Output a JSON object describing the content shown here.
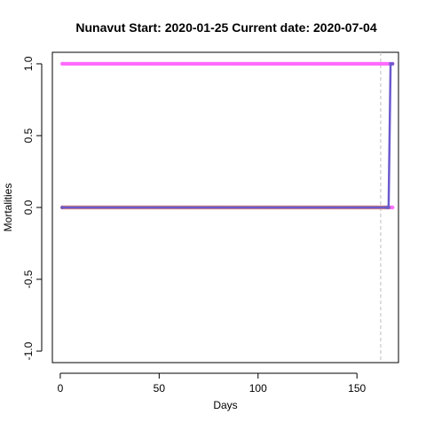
{
  "chart_data": {
    "type": "line",
    "title": "Nunavut Start:  2020-01-25   Current date:  2020-07-04",
    "xlabel": "Days",
    "ylabel": "Mortalities",
    "xlim": [
      -4,
      171
    ],
    "ylim": [
      -1.08,
      1.08
    ],
    "x_ticks": [
      0,
      50,
      100,
      150
    ],
    "y_ticks": [
      1.0,
      0.5,
      0.0,
      -0.5,
      -1.0
    ],
    "y_tick_labels": [
      "1.0",
      "0.5",
      "0.0",
      "-0.5",
      "-1.0"
    ],
    "grid": false,
    "vline": {
      "x": 162,
      "color": "#bdbdbd",
      "style": "dashed"
    },
    "series": [
      {
        "style": "points",
        "color": "#ff66ff",
        "x_start": 1,
        "x_end": 168,
        "segments": [
          {
            "x_from": 1,
            "x_to": 168,
            "y": 1.0
          }
        ]
      },
      {
        "style": "points",
        "color": "#ff66ff",
        "x_start": 1,
        "x_end": 168,
        "segments": [
          {
            "x_from": 1,
            "x_to": 168,
            "y": 0.0
          }
        ]
      },
      {
        "style": "points",
        "color": "#cc8866",
        "x_start": 1,
        "x_end": 166,
        "segments": [
          {
            "x_from": 1,
            "x_to": 166,
            "y": 0.0
          }
        ]
      },
      {
        "style": "line",
        "color": "#6a5acd",
        "points": [
          [
            1,
            0
          ],
          [
            165,
            0
          ],
          [
            166,
            0
          ],
          [
            167,
            1
          ],
          [
            168,
            1
          ]
        ]
      }
    ]
  }
}
